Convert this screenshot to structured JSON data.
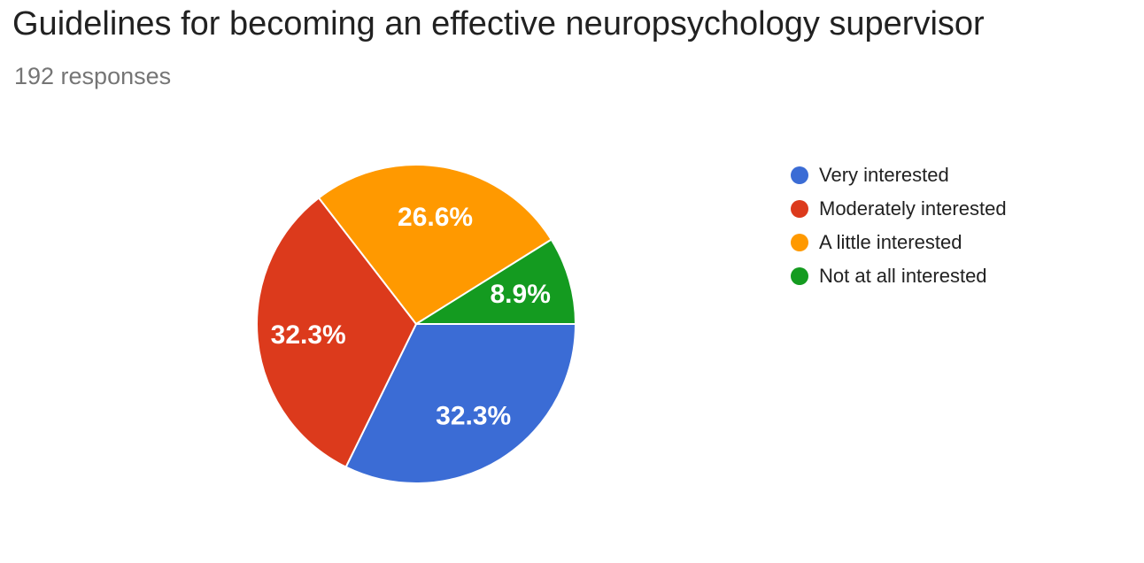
{
  "header": {
    "title": "Guidelines for becoming an effective neuropsychology supervisor",
    "response_count": "192 responses"
  },
  "chart_data": {
    "type": "pie",
    "title": "Guidelines for becoming an effective neuropsychology supervisor",
    "subtitle": "192 responses",
    "total_responses": 192,
    "legend_position": "right",
    "start_angle_deg": 0,
    "direction": "clockwise",
    "slice_label_color": "#FFFFFF",
    "slice_border_color": "#FFFFFF",
    "slices": [
      {
        "label": "Very interested",
        "value_pct": 32.3,
        "display": "32.3%",
        "color": "#3B6CD5"
      },
      {
        "label": "Moderately interested",
        "value_pct": 32.3,
        "display": "32.3%",
        "color": "#DC3A1C"
      },
      {
        "label": "A little interested",
        "value_pct": 26.6,
        "display": "26.6%",
        "color": "#FF9900"
      },
      {
        "label": "Not at all interested",
        "value_pct": 8.9,
        "display": "8.9%",
        "color": "#149B20"
      }
    ]
  },
  "colors": {
    "background": "#FFFFFF",
    "title_text": "#212121",
    "subtitle_text": "#757575",
    "legend_text": "#212121"
  }
}
